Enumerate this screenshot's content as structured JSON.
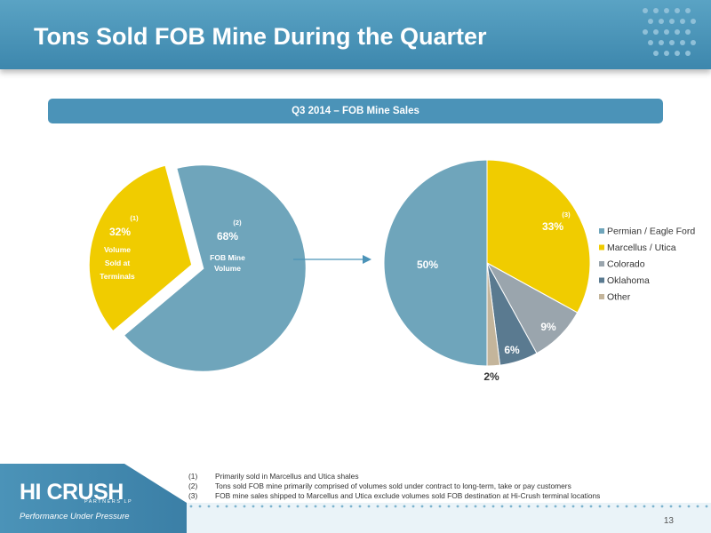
{
  "header": {
    "title": "Tons Sold FOB Mine During the Quarter"
  },
  "banner": {
    "label": "Q3 2014 – FOB Mine Sales"
  },
  "chart_data": [
    {
      "type": "pie",
      "slices": [
        {
          "name": "FOB Mine Volume",
          "value": 68,
          "label": "68%",
          "sup": "(2)",
          "color": "#6fa5bb",
          "text_lines": [
            "FOB Mine",
            "Volume"
          ]
        },
        {
          "name": "Volume Sold at Terminals",
          "value": 32,
          "label": "32%",
          "sup": "(1)",
          "color": "#f0cc00",
          "text_lines": [
            "Volume",
            "Sold at",
            "Terminals"
          ],
          "exploded": true
        }
      ]
    },
    {
      "type": "pie",
      "slices": [
        {
          "name": "Permian / Eagle Ford",
          "value": 50,
          "label": "50%",
          "color": "#6fa5bb"
        },
        {
          "name": "Marcellus / Utica",
          "value": 33,
          "label": "33%",
          "sup": "(3)",
          "color": "#f0cc00"
        },
        {
          "name": "Colorado",
          "value": 9,
          "label": "9%",
          "color": "#9aa5ad"
        },
        {
          "name": "Oklahoma",
          "value": 6,
          "label": "6%",
          "color": "#5a7a90"
        },
        {
          "name": "Other",
          "value": 2,
          "label": "2%",
          "color": "#c4b59b"
        }
      ],
      "legend_position": "right"
    }
  ],
  "footnotes": [
    {
      "num": "(1)",
      "text": "Primarily sold in Marcellus and Utica shales"
    },
    {
      "num": "(2)",
      "text": "Tons sold FOB mine primarily comprised of volumes sold under contract to long-term, take or pay customers"
    },
    {
      "num": "(3)",
      "text": "FOB mine sales shipped to Marcellus and Utica exclude volumes sold FOB destination at Hi-Crush terminal locations"
    }
  ],
  "footer": {
    "logo_text": "HI CRUSH",
    "logo_sub": "PARTNERS LP",
    "tagline": "Performance Under Pressure",
    "page_number": "13"
  },
  "colors": {
    "header": "#4b93b8",
    "accent": "#f0cc00",
    "footer": "#3d87ad"
  }
}
